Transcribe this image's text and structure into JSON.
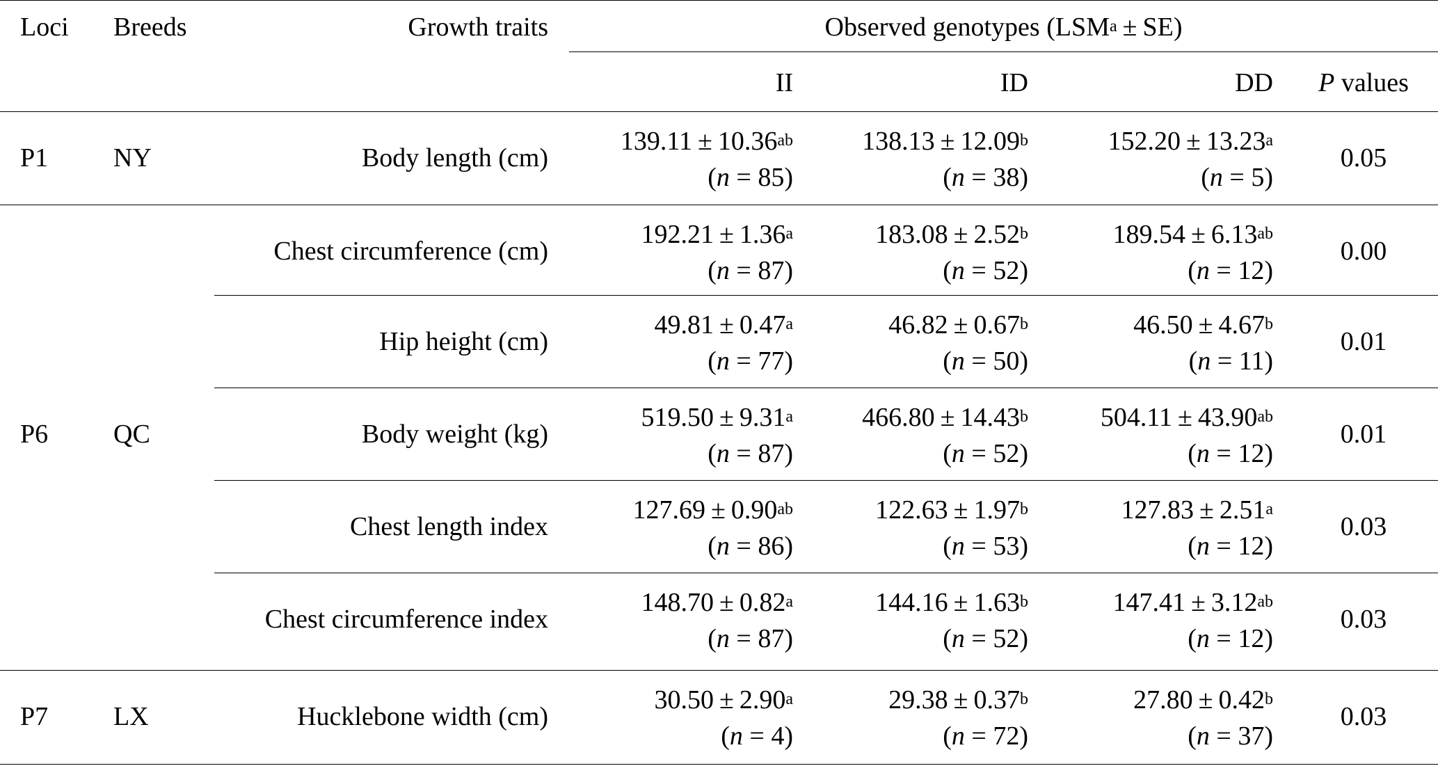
{
  "header": {
    "loci": "Loci",
    "breeds": "Breeds",
    "traits": "Growth traits",
    "observed_title": "Observed genotypes (LSM",
    "observed_sup": "a",
    "observed_tail": "SE)",
    "genotypes": [
      "II",
      "ID",
      "DD"
    ],
    "p_italic": "P",
    "p_rest": "values"
  },
  "rows": [
    {
      "locus": "P1",
      "breed": "NY",
      "trait": "Body length (cm)",
      "II": {
        "mean": "139.11",
        "se": "10.36",
        "sup": "ab",
        "n": "85"
      },
      "ID": {
        "mean": "138.13",
        "se": "12.09",
        "sup": "b",
        "n": "38"
      },
      "DD": {
        "mean": "152.20",
        "se": "13.23",
        "sup": "a",
        "n": "5"
      },
      "p": "0.05"
    },
    {
      "locus": "",
      "breed": "",
      "trait": "Chest circumference (cm)",
      "II": {
        "mean": "192.21",
        "se": "1.36",
        "sup": "a",
        "n": "87"
      },
      "ID": {
        "mean": "183.08",
        "se": "2.52",
        "sup": "b",
        "n": "52"
      },
      "DD": {
        "mean": "189.54",
        "se": "6.13",
        "sup": "ab",
        "n": "12"
      },
      "p": "0.00"
    },
    {
      "locus": "",
      "breed": "",
      "trait": "Hip height (cm)",
      "II": {
        "mean": "49.81",
        "se": "0.47",
        "sup": "a",
        "n": "77"
      },
      "ID": {
        "mean": "46.82",
        "se": "0.67",
        "sup": "b",
        "n": "50"
      },
      "DD": {
        "mean": "46.50",
        "se": "4.67",
        "sup": "b",
        "n": "11"
      },
      "p": "0.01"
    },
    {
      "locus": "P6",
      "breed": "QC",
      "trait": "Body weight (kg)",
      "II": {
        "mean": "519.50",
        "se": "9.31",
        "sup": "a",
        "n": "87"
      },
      "ID": {
        "mean": "466.80",
        "se": "14.43",
        "sup": "b",
        "n": "52"
      },
      "DD": {
        "mean": "504.11",
        "se": "43.90",
        "sup": "ab",
        "n": "12"
      },
      "p": "0.01"
    },
    {
      "locus": "",
      "breed": "",
      "trait": "Chest length index",
      "II": {
        "mean": "127.69",
        "se": "0.90",
        "sup": "ab",
        "n": "86"
      },
      "ID": {
        "mean": "122.63",
        "se": "1.97",
        "sup": "b",
        "n": "53"
      },
      "DD": {
        "mean": "127.83",
        "se": "2.51",
        "sup": "a",
        "n": "12"
      },
      "p": "0.03"
    },
    {
      "locus": "",
      "breed": "",
      "trait": "Chest circumference index",
      "II": {
        "mean": "148.70",
        "se": "0.82",
        "sup": "a",
        "n": "87"
      },
      "ID": {
        "mean": "144.16",
        "se": "1.63",
        "sup": "b",
        "n": "52"
      },
      "DD": {
        "mean": "147.41",
        "se": "3.12",
        "sup": "ab",
        "n": "12"
      },
      "p": "0.03"
    },
    {
      "locus": "P7",
      "breed": "LX",
      "trait": "Hucklebone width (cm)",
      "II": {
        "mean": "30.50",
        "se": "2.90",
        "sup": "a",
        "n": "4"
      },
      "ID": {
        "mean": "29.38",
        "se": "0.37",
        "sup": "b",
        "n": "72"
      },
      "DD": {
        "mean": "27.80",
        "se": "0.42",
        "sup": "b",
        "n": "37"
      },
      "p": "0.03"
    }
  ]
}
